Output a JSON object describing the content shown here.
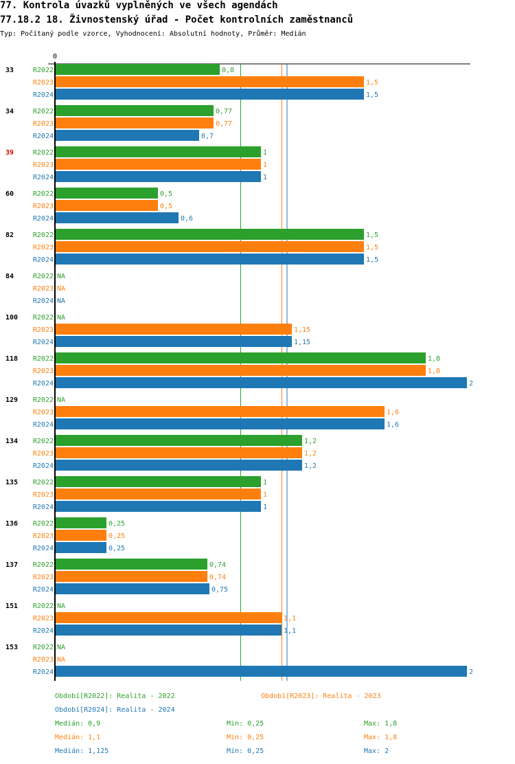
{
  "header": {
    "title": "77. Kontrola úvazků vyplněných ve všech agendách",
    "subtitle": "77.18.2 18. Živnostenský úřad - Počet kontrolních zaměstnanců",
    "type_line": "Typ: Počítaný podle vzorce, Vyhodnocení: Absolutní hodnoty, Průměr: Medián"
  },
  "chart_data": {
    "type": "bar",
    "orientation": "horizontal",
    "xlim": [
      0,
      2
    ],
    "x_tick_labels": [
      "0"
    ],
    "categories": [
      "33",
      "34",
      "39",
      "60",
      "82",
      "84",
      "100",
      "118",
      "129",
      "134",
      "135",
      "136",
      "137",
      "151",
      "153"
    ],
    "highlighted_category": "39",
    "series": [
      {
        "name": "R2022",
        "color": "#2ca02c",
        "values": [
          0.8,
          0.77,
          1,
          0.5,
          1.5,
          null,
          null,
          1.8,
          null,
          1.2,
          1,
          0.25,
          0.74,
          null,
          null
        ],
        "labels": [
          "0,8",
          "0,77",
          "1",
          "0,5",
          "1,5",
          "NA",
          "NA",
          "1,8",
          "NA",
          "1,2",
          "1",
          "0,25",
          "0,74",
          "NA",
          "NA"
        ],
        "median": 0.9
      },
      {
        "name": "R2023",
        "color": "#ff7f0e",
        "values": [
          1.5,
          0.77,
          1,
          0.5,
          1.5,
          null,
          1.15,
          1.8,
          1.6,
          1.2,
          1,
          0.25,
          0.74,
          1.1,
          null
        ],
        "labels": [
          "1,5",
          "0,77",
          "1",
          "0,5",
          "1,5",
          "NA",
          "1,15",
          "1,8",
          "1,6",
          "1,2",
          "1",
          "0,25",
          "0,74",
          "1,1",
          "NA"
        ],
        "median": 1.1
      },
      {
        "name": "R2024",
        "color": "#1f77b4",
        "values": [
          1.5,
          0.7,
          1,
          0.6,
          1.5,
          null,
          1.15,
          2,
          1.6,
          1.2,
          1,
          0.25,
          0.75,
          1.1,
          2
        ],
        "labels": [
          "1,5",
          "0,7",
          "1",
          "0,6",
          "1,5",
          "NA",
          "1,15",
          "2",
          "1,6",
          "1,2",
          "1",
          "0,25",
          "0,75",
          "1,1",
          "2"
        ],
        "median": 1.125
      }
    ]
  },
  "legend": {
    "periods": [
      "Období[R2022]: Realita - 2022",
      "Období[R2023]: Realita - 2023",
      "Období[R2024]: Realita - 2024"
    ],
    "stats": [
      {
        "median": "Medián: 0,9",
        "min": "Min: 0,25",
        "max": "Max: 1,8"
      },
      {
        "median": "Medián: 1,1",
        "min": "Min: 0,25",
        "max": "Max: 1,8"
      },
      {
        "median": "Medián: 1,125",
        "min": "Min: 0,25",
        "max": "Max: 2"
      }
    ]
  }
}
